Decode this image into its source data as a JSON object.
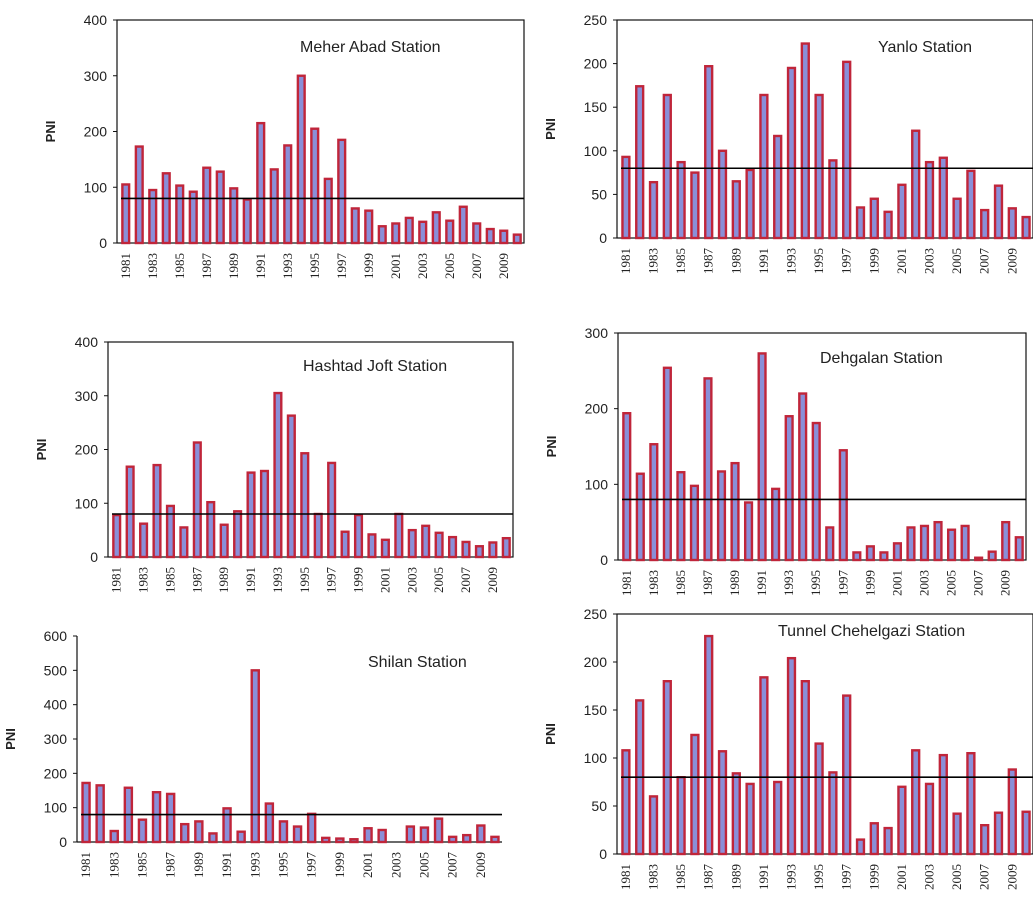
{
  "chart_data": [
    {
      "type": "bar",
      "title": "Meher Abad  Station",
      "ylabel": "PNI",
      "ylim": [
        0,
        400
      ],
      "yticks": [
        0,
        100,
        200,
        300,
        400
      ],
      "categories": [
        "1981",
        "1982",
        "1983",
        "1984",
        "1985",
        "1986",
        "1987",
        "1988",
        "1989",
        "1990",
        "1991",
        "1992",
        "1993",
        "1994",
        "1995",
        "1996",
        "1997",
        "1998",
        "1999",
        "2000",
        "2001",
        "2002",
        "2003",
        "2004",
        "2005",
        "2006",
        "2007",
        "2008",
        "2009",
        "2010"
      ],
      "xtick_labels": [
        "1981",
        "1983",
        "1985",
        "1987",
        "1989",
        "1991",
        "1993",
        "1995",
        "1997",
        "1999",
        "2001",
        "2003",
        "2005",
        "2007",
        "2009"
      ],
      "values": [
        105,
        173,
        95,
        125,
        103,
        92,
        135,
        128,
        98,
        78,
        215,
        132,
        175,
        300,
        205,
        115,
        185,
        62,
        58,
        30,
        35,
        45,
        38,
        55,
        40,
        65,
        35,
        25,
        22,
        15
      ],
      "reference_line": 80
    },
    {
      "type": "bar",
      "title": "Yanlo Station",
      "ylabel": "PNI",
      "ylim": [
        0,
        250
      ],
      "yticks": [
        0,
        50,
        100,
        150,
        200,
        250
      ],
      "categories": [
        "1981",
        "1982",
        "1983",
        "1984",
        "1985",
        "1986",
        "1987",
        "1988",
        "1989",
        "1990",
        "1991",
        "1992",
        "1993",
        "1994",
        "1995",
        "1996",
        "1997",
        "1998",
        "1999",
        "2000",
        "2001",
        "2002",
        "2003",
        "2004",
        "2005",
        "2006",
        "2007",
        "2008",
        "2009",
        "2010"
      ],
      "xtick_labels": [
        "1981",
        "1983",
        "1985",
        "1987",
        "1989",
        "1991",
        "1993",
        "1995",
        "1997",
        "1999",
        "2001",
        "2003",
        "2005",
        "2007",
        "2009"
      ],
      "values": [
        93,
        174,
        64,
        164,
        87,
        75,
        197,
        100,
        65,
        78,
        164,
        117,
        195,
        223,
        164,
        89,
        202,
        35,
        45,
        30,
        61,
        123,
        87,
        92,
        45,
        77,
        32,
        60,
        34,
        24
      ],
      "reference_line": 80
    },
    {
      "type": "bar",
      "title": "Hashtad Joft Station",
      "ylabel": "PNI",
      "ylim": [
        0,
        400
      ],
      "yticks": [
        0,
        100,
        200,
        300,
        400
      ],
      "categories": [
        "1981",
        "1982",
        "1983",
        "1984",
        "1985",
        "1986",
        "1987",
        "1988",
        "1989",
        "1990",
        "1991",
        "1992",
        "1993",
        "1994",
        "1995",
        "1996",
        "1997",
        "1998",
        "1999",
        "2000",
        "2001",
        "2002",
        "2003",
        "2004",
        "2005",
        "2006",
        "2007",
        "2008",
        "2009",
        "2010"
      ],
      "xtick_labels": [
        "1981",
        "1983",
        "1985",
        "1987",
        "1989",
        "1991",
        "1993",
        "1995",
        "1997",
        "1999",
        "2001",
        "2003",
        "2005",
        "2007",
        "2009"
      ],
      "values": [
        78,
        168,
        62,
        171,
        95,
        55,
        213,
        102,
        60,
        85,
        157,
        160,
        305,
        263,
        193,
        80,
        175,
        47,
        78,
        42,
        32,
        80,
        50,
        58,
        45,
        37,
        28,
        20,
        27,
        35
      ],
      "reference_line": 80
    },
    {
      "type": "bar",
      "title": "Dehgalan Station",
      "ylabel": "PNI",
      "ylim": [
        0,
        300
      ],
      "yticks": [
        0,
        100,
        200,
        300
      ],
      "categories": [
        "1981",
        "1982",
        "1983",
        "1984",
        "1985",
        "1986",
        "1987",
        "1988",
        "1989",
        "1990",
        "1991",
        "1992",
        "1993",
        "1994",
        "1995",
        "1996",
        "1997",
        "1998",
        "1999",
        "2000",
        "2001",
        "2002",
        "2003",
        "2004",
        "2005",
        "2006",
        "2007",
        "2008",
        "2009",
        "2010"
      ],
      "xtick_labels": [
        "1981",
        "1983",
        "1985",
        "1987",
        "1989",
        "1991",
        "1993",
        "1995",
        "1997",
        "1999",
        "2001",
        "2003",
        "2005",
        "2007",
        "2009"
      ],
      "values": [
        194,
        114,
        153,
        254,
        116,
        98,
        240,
        117,
        128,
        76,
        273,
        94,
        190,
        220,
        181,
        43,
        145,
        10,
        18,
        10,
        22,
        43,
        45,
        50,
        40,
        45,
        3,
        11,
        50,
        30
      ],
      "reference_line": 80
    },
    {
      "type": "bar",
      "title": "Shilan  Station",
      "ylabel": "PNI",
      "ylim": [
        0,
        600
      ],
      "yticks": [
        0,
        100,
        200,
        300,
        400,
        500,
        600
      ],
      "categories": [
        "1981",
        "1982",
        "1983",
        "1984",
        "1985",
        "1986",
        "1987",
        "1988",
        "1989",
        "1990",
        "1991",
        "1992",
        "1993",
        "1994",
        "1995",
        "1996",
        "1997",
        "1998",
        "1999",
        "2000",
        "2001",
        "2002",
        "2003",
        "2004",
        "2005",
        "2006",
        "2007",
        "2008",
        "2009",
        "2010"
      ],
      "xtick_labels": [
        "1981",
        "1983",
        "1985",
        "1987",
        "1989",
        "1991",
        "1993",
        "1995",
        "1997",
        "1999",
        "2001",
        "2003",
        "2005",
        "2007",
        "2009"
      ],
      "values": [
        172,
        165,
        32,
        158,
        65,
        145,
        140,
        52,
        60,
        25,
        98,
        30,
        500,
        112,
        60,
        45,
        82,
        12,
        10,
        8,
        40,
        35,
        0,
        45,
        42,
        68,
        15,
        20,
        48,
        15
      ],
      "reference_line": 80
    },
    {
      "type": "bar",
      "title": "Tunnel Chehelgazi Station",
      "ylabel": "PNI",
      "ylim": [
        0,
        250
      ],
      "yticks": [
        0,
        50,
        100,
        150,
        200,
        250
      ],
      "categories": [
        "1981",
        "1982",
        "1983",
        "1984",
        "1985",
        "1986",
        "1987",
        "1988",
        "1989",
        "1990",
        "1991",
        "1992",
        "1993",
        "1994",
        "1995",
        "1996",
        "1997",
        "1998",
        "1999",
        "2000",
        "2001",
        "2002",
        "2003",
        "2004",
        "2005",
        "2006",
        "2007",
        "2008",
        "2009",
        "2010"
      ],
      "xtick_labels": [
        "1981",
        "1983",
        "1985",
        "1987",
        "1989",
        "1991",
        "1993",
        "1995",
        "1997",
        "1999",
        "2001",
        "2003",
        "2005",
        "2007",
        "2009"
      ],
      "values": [
        108,
        160,
        60,
        180,
        80,
        124,
        227,
        107,
        84,
        73,
        184,
        75,
        204,
        180,
        115,
        85,
        165,
        15,
        32,
        27,
        70,
        108,
        73,
        103,
        42,
        105,
        30,
        43,
        88,
        44
      ],
      "reference_line": 80
    }
  ],
  "colors": {
    "bar_outer": "#c0253a",
    "bar_inner": "#8a8fd8",
    "axis": "#111111",
    "reference_line": "#000000"
  }
}
